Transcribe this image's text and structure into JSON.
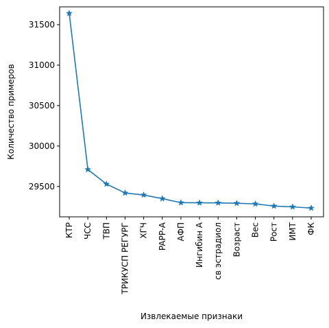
{
  "chart_data": {
    "type": "line",
    "title": "",
    "xlabel": "Извлекаемые признаки",
    "ylabel": "Количество примеров",
    "categories": [
      "КТР",
      "ЧСС",
      "ТВП",
      "ТРИКУСП РЕГУРГ",
      "ХГЧ",
      "PAPP-A",
      "АФП",
      "Ингибин А",
      "св эстрадиол",
      "Возраст",
      "Вес",
      "Рост",
      "ИМТ",
      "ФК"
    ],
    "series": [
      {
        "values": [
          31640,
          29710,
          29530,
          29420,
          29395,
          29350,
          29300,
          29298,
          29297,
          29293,
          29285,
          29258,
          29248,
          29233
        ]
      }
    ],
    "ylim": [
      29125,
      31720
    ],
    "yticks": [
      29500,
      30000,
      30500,
      31000,
      31500
    ],
    "marker": "star",
    "line_color": "#1f77b4",
    "grid": false
  }
}
